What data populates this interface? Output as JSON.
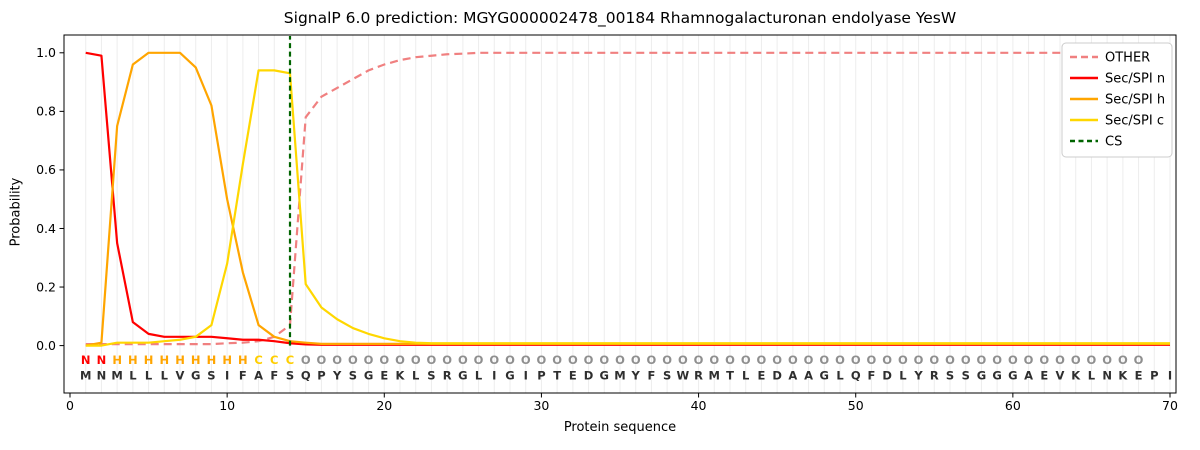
{
  "title": "SignalP 6.0 prediction: MGYG000002478_00184 Rhamnogalacturonan endolyase YesW",
  "axes": {
    "xlabel": "Protein sequence",
    "ylabel": "Probability",
    "xticks": {
      "labels": [
        "0",
        "10",
        "20",
        "30",
        "40",
        "50",
        "60",
        "70"
      ],
      "values": [
        0,
        10,
        20,
        30,
        40,
        50,
        60,
        70
      ]
    },
    "yticks": {
      "labels": [
        "0.0",
        "0.2",
        "0.4",
        "0.6",
        "0.8",
        "1.0"
      ],
      "values": [
        0,
        0.2,
        0.4,
        0.6,
        0.8,
        1.0
      ]
    }
  },
  "legend": {
    "items": [
      {
        "label": "OTHER",
        "color": "#f08080",
        "dash": "7 4"
      },
      {
        "label": "Sec/SPI n",
        "color": "#ff0000",
        "dash": ""
      },
      {
        "label": "Sec/SPI h",
        "color": "#ffa500",
        "dash": ""
      },
      {
        "label": "Sec/SPI c",
        "color": "#ffd700",
        "dash": ""
      },
      {
        "label": "CS",
        "color": "#006400",
        "dash": "5 3.5"
      }
    ]
  },
  "region_colors": {
    "N": "#ff0000",
    "H": "#ffa500",
    "C": "#ffce00",
    "O": "#8f8f8f"
  },
  "sequence_color": "#2e2e2e",
  "grid_color": "#ededed",
  "chart_data": {
    "type": "line",
    "title": "SignalP 6.0 prediction: MGYG000002478_00184 Rhamnogalacturonan endolyase YesW",
    "xlabel": "Protein sequence",
    "ylabel": "Probability",
    "xlim": [
      0,
      70.5
    ],
    "ylim": [
      0,
      1.0
    ],
    "grid": "vertical-per-residue",
    "legend_position": "upper right",
    "sequence": "MNMLLLVGSIFAFSQPYSGEKLSRGLIGIPTEDGMYFSWRMTLEDAAGLQFDLYRSSGGGAEVKLNKEPI",
    "regions": "NNHHHHHHHHHCCCOOOOOOOOOOOOOOOOOOOOOOOOOOOOOOOOOOOOOOOOOOOOOOOOOOOOOO",
    "cs_position": 14,
    "series": [
      {
        "name": "OTHER",
        "color": "#f08080",
        "dash": "8 5",
        "values": [
          0.005,
          0.005,
          0.005,
          0.005,
          0.005,
          0.005,
          0.005,
          0.005,
          0.005,
          0.008,
          0.01,
          0.015,
          0.03,
          0.07,
          0.78,
          0.85,
          0.88,
          0.91,
          0.94,
          0.96,
          0.975,
          0.985,
          0.99,
          0.995,
          0.997,
          1.0,
          1.0,
          1.0,
          1.0,
          1.0,
          1.0,
          1.0,
          1.0,
          1.0,
          1.0,
          1.0,
          1.0,
          1.0,
          1.0,
          1.0,
          1.0,
          1.0,
          1.0,
          1.0,
          1.0,
          1.0,
          1.0,
          1.0,
          1.0,
          1.0,
          1.0,
          1.0,
          1.0,
          1.0,
          1.0,
          1.0,
          1.0,
          1.0,
          1.0,
          1.0,
          1.0,
          1.0,
          1.0,
          1.0,
          1.0,
          1.0,
          1.0,
          1.0,
          1.0,
          1.0
        ]
      },
      {
        "name": "Sec/SPI n",
        "color": "#ff0000",
        "dash": "",
        "values": [
          1.0,
          0.99,
          0.35,
          0.08,
          0.04,
          0.03,
          0.03,
          0.03,
          0.03,
          0.025,
          0.02,
          0.02,
          0.015,
          0.008,
          0.004,
          0.003,
          0.003,
          0.003,
          0.003,
          0.003,
          0.003,
          0.003,
          0.003,
          0.003,
          0.003,
          0.003,
          0.003,
          0.003,
          0.003,
          0.003,
          0.003,
          0.003,
          0.003,
          0.003,
          0.003,
          0.003,
          0.003,
          0.003,
          0.003,
          0.003,
          0.003,
          0.003,
          0.003,
          0.003,
          0.003,
          0.003,
          0.003,
          0.003,
          0.003,
          0.003,
          0.003,
          0.003,
          0.003,
          0.003,
          0.003,
          0.003,
          0.003,
          0.003,
          0.003,
          0.003,
          0.003,
          0.003,
          0.003,
          0.003,
          0.003,
          0.003,
          0.003,
          0.003,
          0.003,
          0.003
        ]
      },
      {
        "name": "Sec/SPI h",
        "color": "#ffa500",
        "dash": "",
        "values": [
          0.0,
          0.01,
          0.75,
          0.96,
          1.0,
          1.0,
          1.0,
          0.95,
          0.82,
          0.5,
          0.25,
          0.07,
          0.03,
          0.015,
          0.01,
          0.006,
          0.006,
          0.006,
          0.006,
          0.006,
          0.006,
          0.006,
          0.006,
          0.006,
          0.006,
          0.006,
          0.006,
          0.006,
          0.006,
          0.006,
          0.006,
          0.006,
          0.006,
          0.006,
          0.006,
          0.006,
          0.006,
          0.006,
          0.006,
          0.006,
          0.006,
          0.006,
          0.006,
          0.006,
          0.006,
          0.006,
          0.006,
          0.006,
          0.006,
          0.006,
          0.006,
          0.006,
          0.006,
          0.006,
          0.006,
          0.006,
          0.006,
          0.006,
          0.006,
          0.006,
          0.006,
          0.006,
          0.006,
          0.006,
          0.006,
          0.006,
          0.006,
          0.006,
          0.006,
          0.006
        ]
      },
      {
        "name": "Sec/SPI c",
        "color": "#ffd700",
        "dash": "",
        "values": [
          0.0,
          0.0,
          0.01,
          0.01,
          0.01,
          0.015,
          0.02,
          0.03,
          0.07,
          0.28,
          0.62,
          0.94,
          0.94,
          0.93,
          0.21,
          0.13,
          0.09,
          0.06,
          0.04,
          0.025,
          0.015,
          0.01,
          0.008,
          0.008,
          0.008,
          0.008,
          0.008,
          0.008,
          0.008,
          0.008,
          0.008,
          0.008,
          0.008,
          0.008,
          0.008,
          0.008,
          0.008,
          0.008,
          0.008,
          0.008,
          0.008,
          0.008,
          0.008,
          0.008,
          0.008,
          0.008,
          0.008,
          0.008,
          0.008,
          0.008,
          0.008,
          0.008,
          0.008,
          0.008,
          0.008,
          0.008,
          0.008,
          0.008,
          0.008,
          0.008,
          0.008,
          0.008,
          0.008,
          0.008,
          0.008,
          0.008,
          0.008,
          0.008,
          0.008,
          0.008
        ]
      }
    ]
  }
}
